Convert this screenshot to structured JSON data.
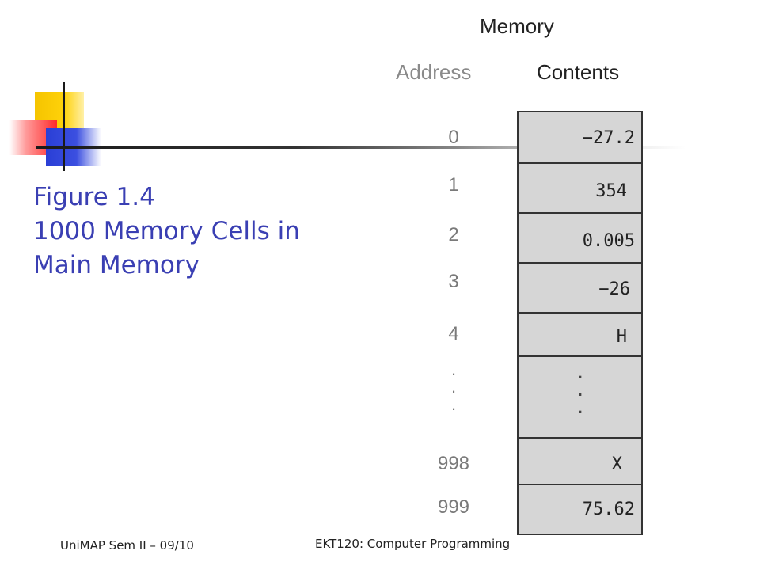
{
  "slide": {
    "title_lines": [
      "Figure 1.4",
      "1000 Memory Cells in",
      "Main Memory"
    ],
    "accent_color": "#3a3fb3"
  },
  "diagram": {
    "memory_label": "Memory",
    "address_label": "Address",
    "contents_label": "Contents",
    "cells": [
      {
        "address": "0",
        "value": "−27.2"
      },
      {
        "address": "1",
        "value": "354"
      },
      {
        "address": "2",
        "value": "0.005"
      },
      {
        "address": "3",
        "value": "−26"
      },
      {
        "address": "4",
        "value": "H"
      },
      {
        "address": ". . .",
        "value": ". . ."
      },
      {
        "address": "998",
        "value": "X"
      },
      {
        "address": "999",
        "value": "75.62"
      }
    ]
  },
  "footer": {
    "left": "UniMAP Sem II – 09/10",
    "center": "EKT120: Computer Programming"
  }
}
